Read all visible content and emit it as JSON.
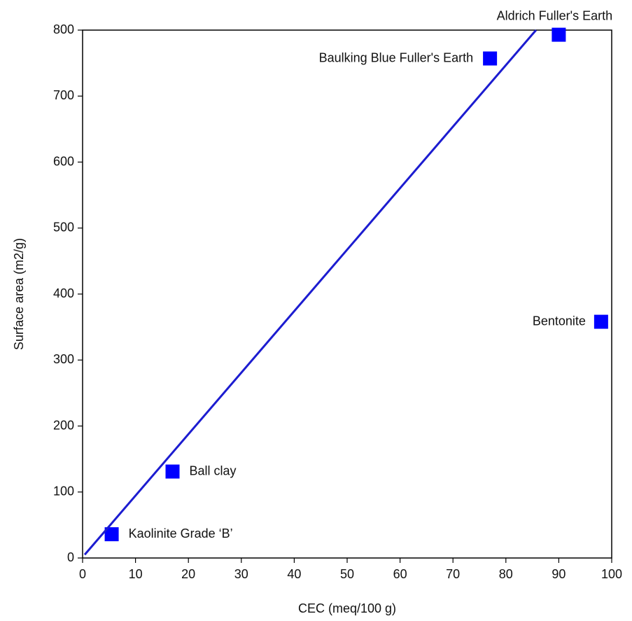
{
  "chart_data": {
    "type": "scatter",
    "x_label": "CEC (meq/100 g)",
    "y_label": "Surface area (m2/g)",
    "xlim": [
      0,
      100
    ],
    "ylim": [
      0,
      800
    ],
    "xticks": [
      0,
      10,
      20,
      30,
      40,
      50,
      60,
      70,
      80,
      90,
      100
    ],
    "yticks": [
      0,
      100,
      200,
      300,
      400,
      500,
      600,
      700,
      800
    ],
    "series": [
      {
        "type": "scatter",
        "color": "#0000ff",
        "x": [
          5.5,
          17,
          77,
          90,
          98
        ],
        "values": [
          36,
          131,
          757,
          793,
          358
        ],
        "point_labels": [
          "Kaolinite Grade ‘B’",
          "Ball clay",
          "Baulking Blue Fuller's Earth",
          "Aldrich Fuller's Earth",
          "Bentonite"
        ]
      },
      {
        "type": "line",
        "color": "#1c1cd0",
        "x": [
          0.4,
          85.7
        ],
        "values": [
          5,
          800
        ]
      }
    ]
  }
}
